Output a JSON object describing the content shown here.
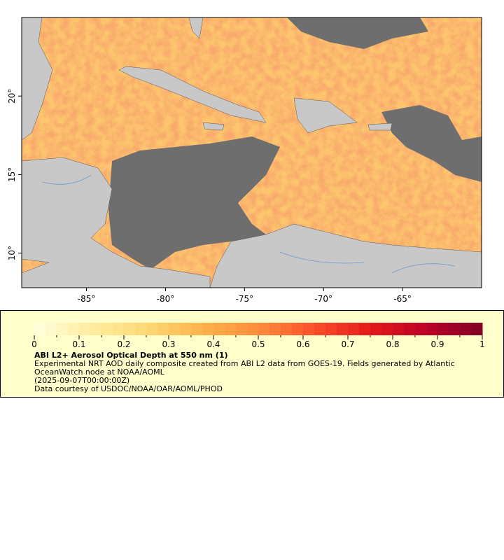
{
  "map": {
    "xlim": [
      -89.1,
      -60.0
    ],
    "ylim": [
      7.8,
      25.0
    ],
    "xticks": [
      {
        "value": -85,
        "label": "-85°"
      },
      {
        "value": -80,
        "label": "-80°"
      },
      {
        "value": -75,
        "label": "-75°"
      },
      {
        "value": -70,
        "label": "-70°"
      },
      {
        "value": -65,
        "label": "-65°"
      }
    ],
    "yticks": [
      {
        "value": 10,
        "label": "10°"
      },
      {
        "value": 15,
        "label": "15°"
      },
      {
        "value": 20,
        "label": "20°"
      }
    ]
  },
  "colorbar": {
    "range": [
      0,
      1
    ],
    "ticks": [
      0,
      0.1,
      0.2,
      0.3,
      0.4,
      0.5,
      0.6,
      0.7,
      0.8,
      0.9,
      1
    ],
    "colors": [
      "#ffffe0",
      "#ffeda0",
      "#fed976",
      "#feb24c",
      "#fd8d3c",
      "#fc4e2a",
      "#e31a1c",
      "#bd0026",
      "#800026"
    ]
  },
  "legend": {
    "title": "ABI L2+ Aerosol Optical Depth at 550 nm (1)",
    "description": "Experimental NRT AOD daily composite created from ABI L2 data from GOES-19. Fields generated by Atlantic OceanWatch node at NOAA/AOML",
    "time": "(2025-09-07T00:00:00Z)",
    "credit": "Data courtesy of USDOC/NOAA/OAR/AOML/PHOD"
  }
}
